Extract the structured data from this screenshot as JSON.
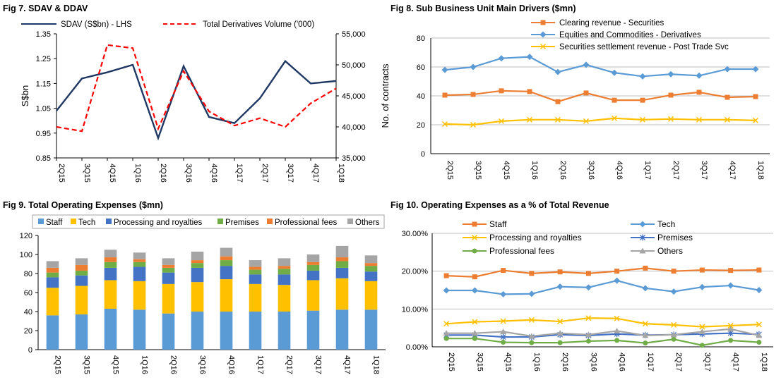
{
  "chart_data": [
    {
      "id": "fig7",
      "type": "line",
      "title": "Fig 7. SDAV & DDAV",
      "categories": [
        "2Q15",
        "3Q15",
        "4Q15",
        "1Q16",
        "2Q16",
        "3Q16",
        "4Q16",
        "1Q17",
        "2Q17",
        "3Q17",
        "4Q17",
        "1Q18"
      ],
      "ylabel": "S$bn",
      "y2label": "No. of contracts",
      "ylim": [
        0.85,
        1.35
      ],
      "yticks": [
        "0.85",
        "0.95",
        "1.05",
        "1.15",
        "1.25",
        "1.35"
      ],
      "y2lim": [
        35000,
        55000
      ],
      "y2ticks": [
        "35,000",
        "40,000",
        "45,000",
        "50,000",
        "55,000"
      ],
      "legend_position": "top",
      "series": [
        {
          "name": "SDAV (S$bn) - LHS",
          "axis": "left",
          "color": "#1f3864",
          "dash": "solid",
          "values": [
            1.04,
            1.17,
            1.195,
            1.225,
            0.93,
            1.22,
            1.015,
            0.99,
            1.09,
            1.24,
            1.15,
            1.16
          ]
        },
        {
          "name": "Total Derivatives Volume ('000)",
          "axis": "right",
          "color": "#ff0000",
          "dash": "dashed",
          "values": [
            40000,
            39300,
            53200,
            52700,
            39700,
            49000,
            42500,
            40200,
            41400,
            40000,
            43800,
            46200
          ]
        }
      ]
    },
    {
      "id": "fig8",
      "type": "line",
      "title": "Fig 8. Sub Business Unit Main Drivers ($mn)",
      "categories": [
        "2Q15",
        "3Q15",
        "4Q15",
        "1Q16",
        "2Q16",
        "3Q16",
        "4Q16",
        "1Q17",
        "2Q17",
        "3Q17",
        "4Q17",
        "1Q18"
      ],
      "ylim": [
        0,
        80
      ],
      "yticks": [
        "0",
        "20",
        "40",
        "60",
        "80"
      ],
      "grid": true,
      "legend_position": "top",
      "series": [
        {
          "name": "Clearing revenue - Securities",
          "color": "#ed7d31",
          "marker": "square",
          "values": [
            40.5,
            41,
            43.5,
            43,
            36,
            42,
            37,
            37,
            40.5,
            42.5,
            39,
            39.5
          ]
        },
        {
          "name": "Equities and Commodities - Derivatives",
          "color": "#5b9bd5",
          "marker": "diamond",
          "values": [
            58,
            60,
            66,
            67,
            56.5,
            61.5,
            56,
            53.5,
            55,
            54,
            58.5,
            58.5
          ]
        },
        {
          "name": "Securities settlement revenue - Post Trade Svc",
          "color": "#ffc000",
          "marker": "x",
          "values": [
            20.5,
            20,
            22.5,
            23.5,
            23.5,
            22.5,
            24.5,
            23.5,
            24,
            23.5,
            23.5,
            23
          ]
        }
      ]
    },
    {
      "id": "fig9",
      "type": "bar",
      "stacked": true,
      "title": "Fig 9. Total Operating Expenses ($mn)",
      "categories": [
        "2Q15",
        "3Q15",
        "4Q15",
        "1Q16",
        "2Q16",
        "3Q16",
        "4Q16",
        "1Q17",
        "2Q17",
        "3Q17",
        "4Q17",
        "1Q18"
      ],
      "ylim": [
        0,
        120
      ],
      "yticks": [
        "0",
        "20",
        "40",
        "60",
        "80",
        "100",
        "120"
      ],
      "legend_position": "top",
      "series": [
        {
          "name": "Staff",
          "color": "#5b9bd5",
          "values": [
            36,
            37,
            43,
            42,
            38,
            40,
            40,
            40,
            40,
            41,
            42,
            42
          ]
        },
        {
          "name": "Tech",
          "color": "#ffc000",
          "values": [
            29,
            30,
            30,
            30,
            31,
            31,
            34,
            29,
            28,
            32,
            33,
            30
          ]
        },
        {
          "name": "Processing and royalties",
          "color": "#4472c4",
          "values": [
            11,
            11,
            13,
            15,
            12,
            15,
            14,
            10,
            11,
            10,
            11,
            10
          ]
        },
        {
          "name": "Premises",
          "color": "#70ad47",
          "values": [
            5,
            5,
            6,
            5,
            5,
            5,
            6,
            5,
            6,
            6,
            7,
            6
          ]
        },
        {
          "name": "Professional fees",
          "color": "#ed7d31",
          "values": [
            5,
            6,
            5,
            3,
            3,
            3,
            4,
            3,
            3,
            3,
            4,
            3
          ]
        },
        {
          "name": "Others",
          "color": "#a5a5a5",
          "values": [
            7,
            7,
            8,
            7,
            7,
            9,
            9,
            7,
            8,
            8,
            12,
            8
          ]
        }
      ]
    },
    {
      "id": "fig10",
      "type": "line",
      "title": "Fig 10. Operating Expenses as a % of Total Revenue",
      "categories": [
        "2Q15",
        "3Q15",
        "4Q15",
        "1Q16",
        "2Q16",
        "3Q16",
        "4Q16",
        "1Q17",
        "2Q17",
        "3Q17",
        "4Q17",
        "1Q18"
      ],
      "ylim": [
        0,
        30
      ],
      "yticks": [
        "0.00%",
        "10.00%",
        "20.00%",
        "30.00%"
      ],
      "grid": true,
      "legend_position": "top",
      "series": [
        {
          "name": "Staff",
          "color": "#ed7d31",
          "marker": "square",
          "values": [
            18.8,
            18.5,
            20.2,
            19.4,
            19.8,
            19.4,
            20,
            20.8,
            20,
            20.3,
            20.2,
            20.3
          ]
        },
        {
          "name": "Tech",
          "color": "#5b9bd5",
          "marker": "diamond",
          "values": [
            14.9,
            14.9,
            13.9,
            14,
            15.9,
            15.7,
            17.5,
            15.5,
            14.6,
            15.8,
            16.2,
            15
          ]
        },
        {
          "name": "Processing and royalties",
          "color": "#ffc000",
          "marker": "x",
          "values": [
            6.1,
            6.6,
            6.8,
            7.1,
            6.7,
            7.6,
            7.5,
            6.1,
            5.8,
            5.3,
            5.6,
            5.9
          ]
        },
        {
          "name": "Premises",
          "color": "#4472c4",
          "marker": "star",
          "values": [
            3.1,
            3.1,
            2.6,
            2.6,
            3.2,
            3,
            3.4,
            3.1,
            3.2,
            3.4,
            3.6,
            3.3
          ]
        },
        {
          "name": "Professional fees",
          "color": "#70ad47",
          "marker": "circle",
          "values": [
            2.2,
            2.2,
            1.2,
            1.1,
            1.1,
            1.5,
            1.7,
            1,
            2,
            0.4,
            1.7,
            1.2
          ]
        },
        {
          "name": "Others",
          "color": "#a5a5a5",
          "marker": "triangle",
          "values": [
            3.6,
            3.6,
            4,
            2.8,
            3.6,
            3.2,
            4.2,
            3,
            3.2,
            4,
            4.7,
            3
          ]
        }
      ]
    }
  ]
}
